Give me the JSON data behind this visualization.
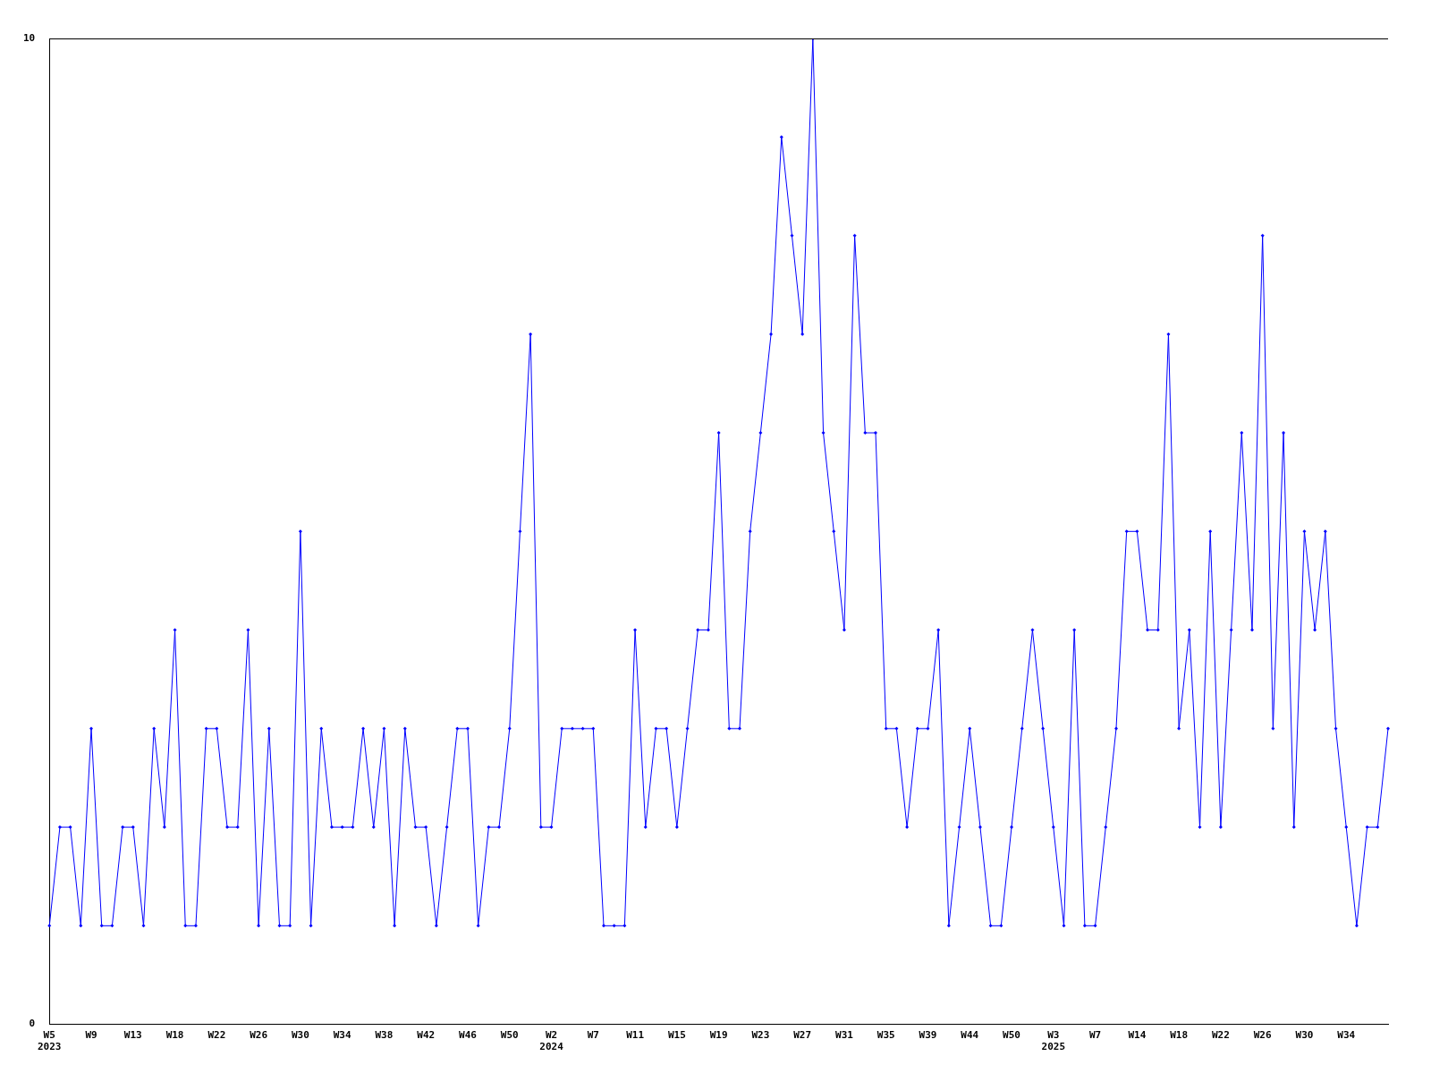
{
  "chart_data": {
    "type": "line",
    "categories": [
      "W5\n2023",
      null,
      null,
      null,
      "W9",
      null,
      null,
      null,
      "W13",
      null,
      null,
      null,
      "W18",
      null,
      null,
      null,
      "W22",
      null,
      null,
      null,
      "W26",
      null,
      null,
      null,
      "W30",
      null,
      null,
      null,
      "W34",
      null,
      null,
      null,
      "W38",
      null,
      null,
      null,
      "W42",
      null,
      null,
      null,
      "W46",
      null,
      null,
      null,
      "W50",
      null,
      null,
      null,
      "W2\n2024",
      null,
      null,
      null,
      "W7",
      null,
      null,
      null,
      "W11",
      null,
      null,
      null,
      "W15",
      null,
      null,
      null,
      "W19",
      null,
      null,
      null,
      "W23",
      null,
      null,
      null,
      "W27",
      null,
      null,
      null,
      "W31",
      null,
      null,
      null,
      "W35",
      null,
      null,
      null,
      "W39",
      null,
      null,
      null,
      "W44",
      null,
      null,
      null,
      "W50",
      null,
      null,
      null,
      "W3\n2025",
      null,
      null,
      null,
      "W7",
      null,
      null,
      null,
      "W14",
      null,
      null,
      null,
      "W18",
      null,
      null,
      null,
      "W22",
      null,
      null,
      null,
      "W26",
      null,
      null,
      null,
      "W30",
      null,
      null,
      null,
      "W34",
      null,
      null,
      null,
      null
    ],
    "series": [
      {
        "color": "#0000ff",
        "values": [
          1,
          2,
          2,
          1,
          3,
          1,
          1,
          2,
          2,
          1,
          3,
          2,
          4,
          1,
          1,
          3,
          3,
          2,
          2,
          4,
          1,
          3,
          1,
          1,
          5,
          1,
          3,
          2,
          2,
          2,
          3,
          2,
          3,
          1,
          3,
          2,
          2,
          1,
          2,
          3,
          3,
          1,
          2,
          2,
          3,
          5,
          7,
          2,
          2,
          3,
          3,
          3,
          3,
          1,
          1,
          1,
          4,
          2,
          3,
          3,
          2,
          3,
          4,
          4,
          6,
          3,
          3,
          5,
          6,
          7,
          9,
          8,
          7,
          10,
          6,
          5,
          4,
          8,
          6,
          6,
          3,
          3,
          2,
          3,
          3,
          4,
          1,
          2,
          3,
          2,
          1,
          1,
          2,
          3,
          4,
          3,
          2,
          1,
          4,
          1,
          1,
          2,
          3,
          5,
          5,
          4,
          4,
          7,
          3,
          4,
          2,
          5,
          2,
          4,
          6,
          4,
          8,
          3,
          6,
          2,
          5,
          4,
          5,
          3,
          2,
          1,
          2,
          2,
          3
        ]
      }
    ],
    "ylim": [
      0,
      10
    ],
    "yticks": [
      0,
      10
    ],
    "grid": false,
    "legend": false,
    "marker": "diamond",
    "line_style": "solid"
  }
}
